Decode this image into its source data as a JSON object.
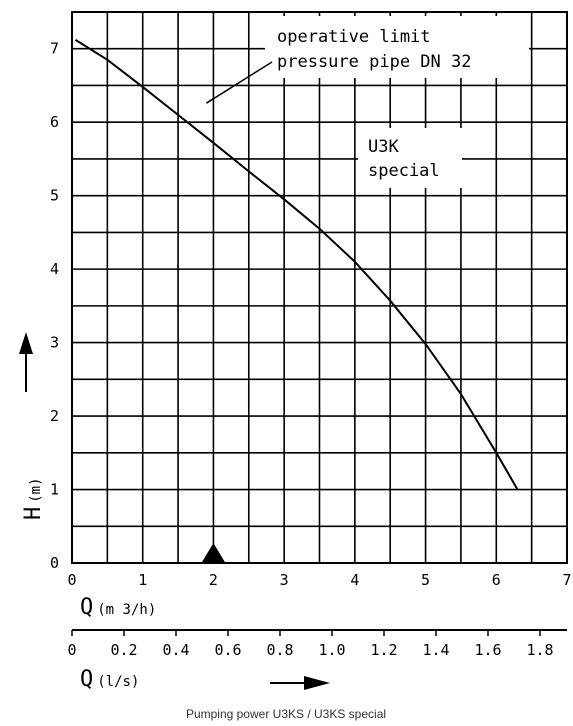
{
  "caption": "Pumping power U3KS / U3KS special",
  "chart_data": {
    "type": "line",
    "x_axis": {
      "label": "Q",
      "unit": "(m 3/h)",
      "range": [
        0,
        7
      ],
      "ticks": [
        0,
        1,
        2,
        3,
        4,
        5,
        6,
        7
      ]
    },
    "x2_axis": {
      "label": "Q",
      "unit": "(l/s)",
      "ticks": [
        "0",
        "0.2",
        "0.4",
        "0.6",
        "0.8",
        "1.0",
        "1.2",
        "1.4",
        "1.6",
        "1.8"
      ],
      "tick_values": [
        0,
        0.2,
        0.4,
        0.6,
        0.8,
        1.0,
        1.2,
        1.4,
        1.6,
        1.8
      ]
    },
    "y_axis": {
      "label": "H",
      "unit": "(m)",
      "range": [
        0,
        7.5
      ],
      "ticks": [
        0,
        1,
        2,
        3,
        4,
        5,
        6,
        7
      ]
    },
    "grid": true,
    "series": [
      {
        "name": "U3K special",
        "x": [
          0.05,
          0.5,
          1,
          1.5,
          2,
          2.5,
          3,
          3.5,
          4,
          4.5,
          5,
          5.5,
          6,
          6.3
        ],
        "y": [
          7.12,
          6.85,
          6.48,
          6.1,
          5.72,
          5.33,
          4.95,
          4.55,
          4.1,
          3.57,
          2.98,
          2.3,
          1.5,
          1.0
        ]
      }
    ],
    "annotations": [
      {
        "text_lines": [
          "operative limit",
          "pressure pipe DN 32"
        ],
        "points_to_x": 1.9
      },
      {
        "text_lines": [
          "U3K",
          "special"
        ]
      }
    ],
    "marker": {
      "shape": "triangle",
      "x": 2,
      "y": 0
    }
  }
}
